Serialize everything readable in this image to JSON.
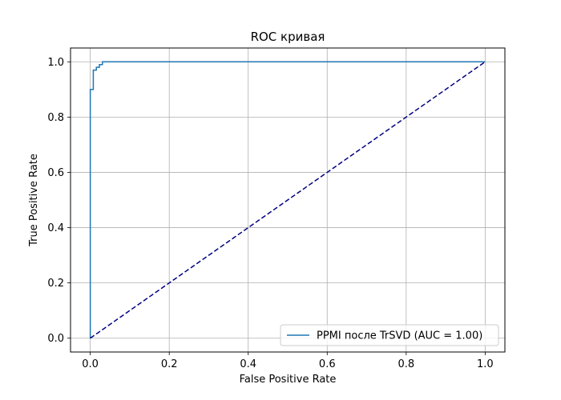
{
  "chart_data": {
    "type": "line",
    "title": "ROC кривая",
    "xlabel": "False Positive Rate",
    "ylabel": "True Positive Rate",
    "xlim": [
      -0.05,
      1.05
    ],
    "ylim": [
      -0.05,
      1.05
    ],
    "xticks": [
      "0.0",
      "0.2",
      "0.4",
      "0.6",
      "0.8",
      "1.0"
    ],
    "yticks": [
      "0.0",
      "0.2",
      "0.4",
      "0.6",
      "0.8",
      "1.0"
    ],
    "grid": true,
    "legend_position": "lower right",
    "series": [
      {
        "name": "PPMI после TrSVD (AUC = 1.00)",
        "color": "#1f77b4",
        "style": "step",
        "x": [
          0.0,
          0.0,
          0.0,
          0.0077,
          0.0077,
          0.0154,
          0.0154,
          0.0231,
          0.0231,
          0.0308,
          0.0308,
          1.0
        ],
        "y": [
          0.0,
          0.9,
          0.9,
          0.9,
          0.97,
          0.97,
          0.98,
          0.98,
          0.99,
          0.99,
          1.0,
          1.0
        ]
      },
      {
        "name": "",
        "color": "#000080",
        "style": "dashed",
        "x": [
          0.0,
          1.0
        ],
        "y": [
          0.0,
          1.0
        ]
      }
    ]
  }
}
